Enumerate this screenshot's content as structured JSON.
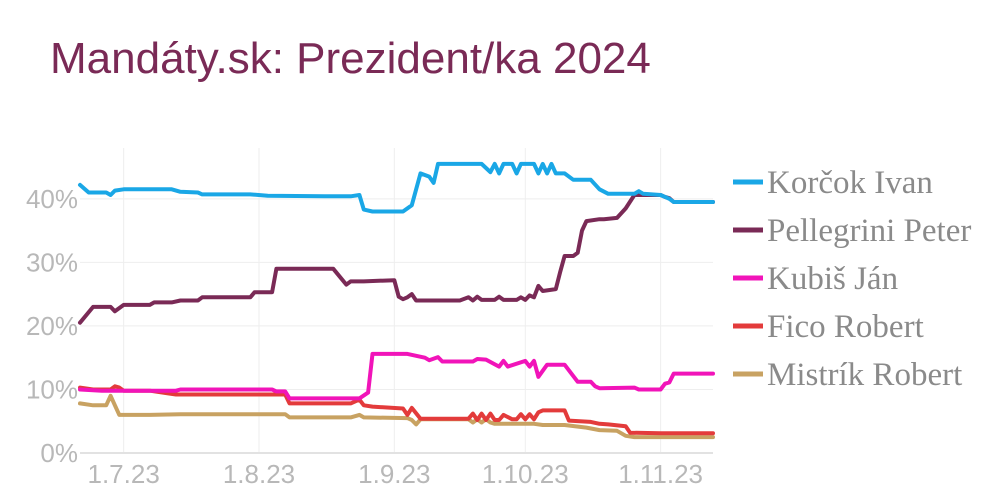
{
  "chart_data": {
    "type": "line",
    "title": "Mandáty.sk: Prezident/ka 2024",
    "xlabel": "",
    "ylabel": "",
    "x_tick_labels": [
      "1.7.23",
      "1.8.23",
      "1.9.23",
      "1.10.23",
      "1.11.23"
    ],
    "y_tick_labels": [
      "0%",
      "10%",
      "20%",
      "30%",
      "40%"
    ],
    "xlim": [
      "2023-06-21",
      "2023-11-13"
    ],
    "ylim": [
      0,
      48
    ],
    "grid": true,
    "legend_position": "right",
    "x_ticks": [
      "2023-07-01",
      "2023-08-01",
      "2023-09-01",
      "2023-10-01",
      "2023-11-01"
    ],
    "y_ticks": [
      0,
      10,
      20,
      30,
      40
    ],
    "series": [
      {
        "name": "Korčok Ivan",
        "color": "#1aa7e6",
        "points": [
          [
            "2023-06-21",
            42.2
          ],
          [
            "2023-06-23",
            41
          ],
          [
            "2023-06-27",
            41
          ],
          [
            "2023-06-28",
            40.6
          ],
          [
            "2023-06-29",
            41.3
          ],
          [
            "2023-07-01",
            41.5
          ],
          [
            "2023-07-12",
            41.5
          ],
          [
            "2023-07-14",
            41.1
          ],
          [
            "2023-07-18",
            41
          ],
          [
            "2023-07-19",
            40.7
          ],
          [
            "2023-07-30",
            40.7
          ],
          [
            "2023-08-03",
            40.5
          ],
          [
            "2023-08-16",
            40.4
          ],
          [
            "2023-08-22",
            40.4
          ],
          [
            "2023-08-24",
            40.6
          ],
          [
            "2023-08-25",
            38.3
          ],
          [
            "2023-08-27",
            38
          ],
          [
            "2023-09-03",
            38
          ],
          [
            "2023-09-05",
            39
          ],
          [
            "2023-09-07",
            44
          ],
          [
            "2023-09-09",
            43.5
          ],
          [
            "2023-09-10",
            42.5
          ],
          [
            "2023-09-11",
            45.5
          ],
          [
            "2023-09-21",
            45.5
          ],
          [
            "2023-09-23",
            44.2
          ],
          [
            "2023-09-24",
            45.5
          ],
          [
            "2023-09-25",
            44
          ],
          [
            "2023-09-26",
            45.5
          ],
          [
            "2023-09-28",
            45.5
          ],
          [
            "2023-09-29",
            44
          ],
          [
            "2023-09-30",
            45.5
          ],
          [
            "2023-10-03",
            45.5
          ],
          [
            "2023-10-04",
            44
          ],
          [
            "2023-10-05",
            45.5
          ],
          [
            "2023-10-06",
            44
          ],
          [
            "2023-10-07",
            45.5
          ],
          [
            "2023-10-08",
            44
          ],
          [
            "2023-10-10",
            44
          ],
          [
            "2023-10-12",
            43
          ],
          [
            "2023-10-16",
            43
          ],
          [
            "2023-10-18",
            41.5
          ],
          [
            "2023-10-20",
            40.8
          ],
          [
            "2023-10-26",
            40.8
          ],
          [
            "2023-10-27",
            41.2
          ],
          [
            "2023-10-28",
            40.8
          ],
          [
            "2023-11-01",
            40.6
          ],
          [
            "2023-11-03",
            40
          ],
          [
            "2023-11-04",
            39.5
          ],
          [
            "2023-11-13",
            39.5
          ]
        ]
      },
      {
        "name": "Pellegrini Peter",
        "color": "#7a2a56",
        "points": [
          [
            "2023-06-21",
            20.5
          ],
          [
            "2023-06-24",
            23
          ],
          [
            "2023-06-28",
            23
          ],
          [
            "2023-06-29",
            22.3
          ],
          [
            "2023-07-01",
            23.3
          ],
          [
            "2023-07-07",
            23.3
          ],
          [
            "2023-07-08",
            23.7
          ],
          [
            "2023-07-12",
            23.7
          ],
          [
            "2023-07-14",
            24
          ],
          [
            "2023-07-18",
            24
          ],
          [
            "2023-07-19",
            24.5
          ],
          [
            "2023-07-26",
            24.5
          ],
          [
            "2023-07-30",
            24.5
          ],
          [
            "2023-07-31",
            25.3
          ],
          [
            "2023-08-03",
            25.3
          ],
          [
            "2023-08-04",
            25.3
          ],
          [
            "2023-08-05",
            29
          ],
          [
            "2023-08-15",
            29
          ],
          [
            "2023-08-18",
            29
          ],
          [
            "2023-08-21",
            26.5
          ],
          [
            "2023-08-22",
            27
          ],
          [
            "2023-08-25",
            27
          ],
          [
            "2023-09-01",
            27.2
          ],
          [
            "2023-09-02",
            24.6
          ],
          [
            "2023-09-03",
            24.2
          ],
          [
            "2023-09-04",
            24.5
          ],
          [
            "2023-09-05",
            25
          ],
          [
            "2023-09-06",
            24
          ],
          [
            "2023-09-16",
            24
          ],
          [
            "2023-09-18",
            24.5
          ],
          [
            "2023-09-19",
            24
          ],
          [
            "2023-09-20",
            24.6
          ],
          [
            "2023-09-21",
            24.1
          ],
          [
            "2023-09-24",
            24.1
          ],
          [
            "2023-09-25",
            24.6
          ],
          [
            "2023-09-26",
            24.1
          ],
          [
            "2023-09-29",
            24.1
          ],
          [
            "2023-09-30",
            24.5
          ],
          [
            "2023-10-01",
            24.1
          ],
          [
            "2023-10-02",
            24.8
          ],
          [
            "2023-10-03",
            24.5
          ],
          [
            "2023-10-04",
            26.3
          ],
          [
            "2023-10-05",
            25.5
          ],
          [
            "2023-10-08",
            25.8
          ],
          [
            "2023-10-09",
            28.5
          ],
          [
            "2023-10-10",
            31
          ],
          [
            "2023-10-12",
            31
          ],
          [
            "2023-10-13",
            31.5
          ],
          [
            "2023-10-14",
            35
          ],
          [
            "2023-10-15",
            36.5
          ],
          [
            "2023-10-18",
            36.8
          ],
          [
            "2023-10-19",
            36.8
          ],
          [
            "2023-10-22",
            37
          ],
          [
            "2023-10-24",
            38.5
          ],
          [
            "2023-10-26",
            40.6
          ],
          [
            "2023-11-01",
            40.6
          ],
          [
            "2023-11-02",
            40.3
          ],
          [
            "2023-11-03",
            40.1
          ],
          [
            "2023-11-04",
            39.5
          ],
          [
            "2023-11-13",
            39.5
          ]
        ]
      },
      {
        "name": "Kubiš Ján",
        "color": "#f114b9",
        "points": [
          [
            "2023-06-21",
            10
          ],
          [
            "2023-06-26",
            9.8
          ],
          [
            "2023-07-13",
            9.8
          ],
          [
            "2023-07-14",
            10
          ],
          [
            "2023-08-04",
            10
          ],
          [
            "2023-08-05",
            9.7
          ],
          [
            "2023-08-07",
            9.7
          ],
          [
            "2023-08-08",
            8.6
          ],
          [
            "2023-08-24",
            8.6
          ],
          [
            "2023-08-26",
            9.5
          ],
          [
            "2023-08-27",
            15.6
          ],
          [
            "2023-09-04",
            15.6
          ],
          [
            "2023-09-08",
            15
          ],
          [
            "2023-09-09",
            14.6
          ],
          [
            "2023-09-11",
            15.1
          ],
          [
            "2023-09-12",
            14.4
          ],
          [
            "2023-09-19",
            14.4
          ],
          [
            "2023-09-20",
            14.8
          ],
          [
            "2023-09-22",
            14.7
          ],
          [
            "2023-09-25",
            13.6
          ],
          [
            "2023-09-26",
            14.5
          ],
          [
            "2023-09-27",
            13.6
          ],
          [
            "2023-10-01",
            14.5
          ],
          [
            "2023-10-02",
            13.6
          ],
          [
            "2023-10-03",
            14.5
          ],
          [
            "2023-10-04",
            12
          ],
          [
            "2023-10-06",
            13.9
          ],
          [
            "2023-10-10",
            13.9
          ],
          [
            "2023-10-13",
            11.2
          ],
          [
            "2023-10-16",
            11.2
          ],
          [
            "2023-10-17",
            10.5
          ],
          [
            "2023-10-18",
            10.2
          ],
          [
            "2023-10-26",
            10.3
          ],
          [
            "2023-10-27",
            10
          ],
          [
            "2023-11-01",
            10
          ],
          [
            "2023-11-02",
            10.9
          ],
          [
            "2023-11-03",
            11.1
          ],
          [
            "2023-11-04",
            12.5
          ],
          [
            "2023-11-13",
            12.5
          ]
        ]
      },
      {
        "name": "Fico Robert",
        "color": "#e33b3b",
        "points": [
          [
            "2023-06-21",
            10.3
          ],
          [
            "2023-06-24",
            10
          ],
          [
            "2023-06-28",
            10
          ],
          [
            "2023-06-29",
            10.5
          ],
          [
            "2023-06-30",
            10.3
          ],
          [
            "2023-07-01",
            9.8
          ],
          [
            "2023-07-07",
            9.8
          ],
          [
            "2023-07-11",
            9.4
          ],
          [
            "2023-07-13",
            9.2
          ],
          [
            "2023-08-07",
            9.2
          ],
          [
            "2023-08-08",
            7.8
          ],
          [
            "2023-08-22",
            7.8
          ],
          [
            "2023-08-24",
            8.4
          ],
          [
            "2023-08-25",
            7.5
          ],
          [
            "2023-08-27",
            7.3
          ],
          [
            "2023-09-03",
            7
          ],
          [
            "2023-09-04",
            6
          ],
          [
            "2023-09-05",
            7.1
          ],
          [
            "2023-09-07",
            5.4
          ],
          [
            "2023-09-18",
            5.4
          ],
          [
            "2023-09-19",
            6.2
          ],
          [
            "2023-09-20",
            5.2
          ],
          [
            "2023-09-21",
            6.2
          ],
          [
            "2023-09-22",
            5.2
          ],
          [
            "2023-09-23",
            6.2
          ],
          [
            "2023-09-24",
            5.2
          ],
          [
            "2023-09-25",
            5.2
          ],
          [
            "2023-09-26",
            6
          ],
          [
            "2023-09-28",
            5.3
          ],
          [
            "2023-09-29",
            5.3
          ],
          [
            "2023-09-30",
            6.1
          ],
          [
            "2023-10-01",
            5.3
          ],
          [
            "2023-10-02",
            6.1
          ],
          [
            "2023-10-03",
            5.3
          ],
          [
            "2023-10-04",
            6.4
          ],
          [
            "2023-10-05",
            6.7
          ],
          [
            "2023-10-10",
            6.7
          ],
          [
            "2023-10-11",
            5.1
          ],
          [
            "2023-10-16",
            4.9
          ],
          [
            "2023-10-18",
            4.6
          ],
          [
            "2023-10-20",
            4.5
          ],
          [
            "2023-10-24",
            4.2
          ],
          [
            "2023-10-25",
            3.2
          ],
          [
            "2023-11-01",
            3.1
          ],
          [
            "2023-11-13",
            3.1
          ]
        ]
      },
      {
        "name": "Mistrík Robert",
        "color": "#c8a262",
        "points": [
          [
            "2023-06-21",
            7.8
          ],
          [
            "2023-06-24",
            7.5
          ],
          [
            "2023-06-27",
            7.5
          ],
          [
            "2023-06-28",
            9
          ],
          [
            "2023-06-29",
            7.5
          ],
          [
            "2023-06-30",
            6
          ],
          [
            "2023-07-07",
            6
          ],
          [
            "2023-07-14",
            6.1
          ],
          [
            "2023-08-07",
            6.1
          ],
          [
            "2023-08-08",
            5.6
          ],
          [
            "2023-08-22",
            5.6
          ],
          [
            "2023-08-24",
            6
          ],
          [
            "2023-08-25",
            5.6
          ],
          [
            "2023-09-04",
            5.5
          ],
          [
            "2023-09-05",
            5.2
          ],
          [
            "2023-09-06",
            4.5
          ],
          [
            "2023-09-07",
            5.3
          ],
          [
            "2023-09-18",
            5.3
          ],
          [
            "2023-09-19",
            4.8
          ],
          [
            "2023-09-20",
            5.3
          ],
          [
            "2023-09-21",
            4.8
          ],
          [
            "2023-09-22",
            5.3
          ],
          [
            "2023-09-23",
            4.8
          ],
          [
            "2023-09-24",
            4.6
          ],
          [
            "2023-10-03",
            4.6
          ],
          [
            "2023-10-05",
            4.4
          ],
          [
            "2023-10-10",
            4.4
          ],
          [
            "2023-10-15",
            4
          ],
          [
            "2023-10-18",
            3.6
          ],
          [
            "2023-10-22",
            3.5
          ],
          [
            "2023-10-24",
            2.7
          ],
          [
            "2023-10-26",
            2.5
          ],
          [
            "2023-11-13",
            2.5
          ]
        ]
      }
    ]
  }
}
